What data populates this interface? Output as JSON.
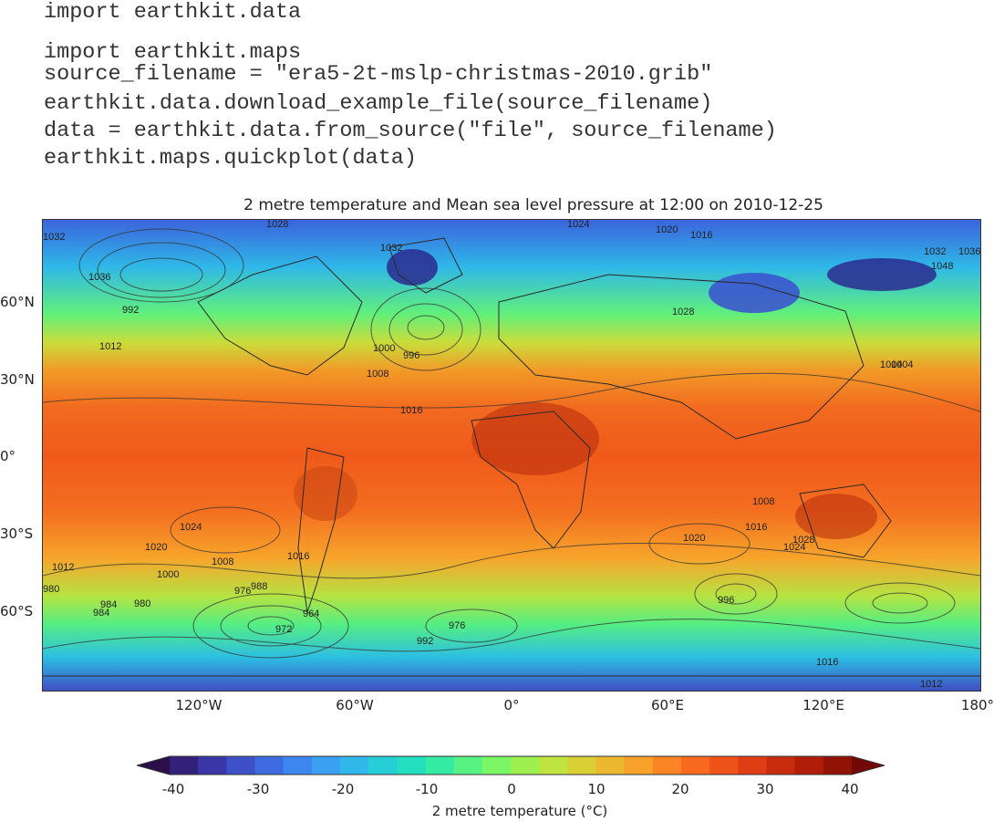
{
  "code": {
    "lines": [
      "import earthkit.data",
      "import earthkit.maps",
      "source_filename = \"era5-2t-mslp-christmas-2010.grib\"",
      "earthkit.data.download_example_file(source_filename)",
      "data = earthkit.data.from_source(\"file\", source_filename)",
      "earthkit.maps.quickplot(data)"
    ]
  },
  "map": {
    "title": "2 metre temperature and Mean sea level pressure at 12:00 on 2010-12-25",
    "lat_labels": [
      "60°N",
      "30°N",
      "0°",
      "30°S",
      "60°S"
    ],
    "lon_labels": [
      "120°W",
      "60°W",
      "0°",
      "60°E",
      "120°E",
      "180°"
    ],
    "isobar_labels": [
      "1028",
      "1032",
      "1036",
      "1032",
      "1024",
      "1020",
      "1016",
      "1012",
      "1008",
      "1004",
      "1000",
      "996",
      "992",
      "988",
      "984",
      "980",
      "976",
      "972",
      "964",
      "1024",
      "1020",
      "1016",
      "1012",
      "1008",
      "1000",
      "996",
      "992",
      "984",
      "980",
      "976",
      "1028",
      "1032",
      "1036",
      "1048",
      "1016",
      "1004",
      "1008",
      "1016",
      "1020",
      "1028",
      "1024",
      "1016",
      "1012"
    ]
  },
  "colorbar": {
    "ticks": [
      "-40",
      "-30",
      "-20",
      "-10",
      "0",
      "10",
      "20",
      "30",
      "40"
    ],
    "label": "2 metre temperature (°C)",
    "colors": [
      "#2a0f4a",
      "#33207a",
      "#3a36a8",
      "#3d50c8",
      "#3f6be0",
      "#3d86ee",
      "#3aa0f2",
      "#30b8ea",
      "#26cfd8",
      "#23dfc0",
      "#35eaa2",
      "#56f283",
      "#7af666",
      "#9ef04e",
      "#bfe33f",
      "#d8d035",
      "#ebb82f",
      "#f7a02a",
      "#fb8524",
      "#f86b1e",
      "#ee5219",
      "#df3d14",
      "#c92b0e",
      "#b01e0a",
      "#931206",
      "#730704"
    ]
  }
}
